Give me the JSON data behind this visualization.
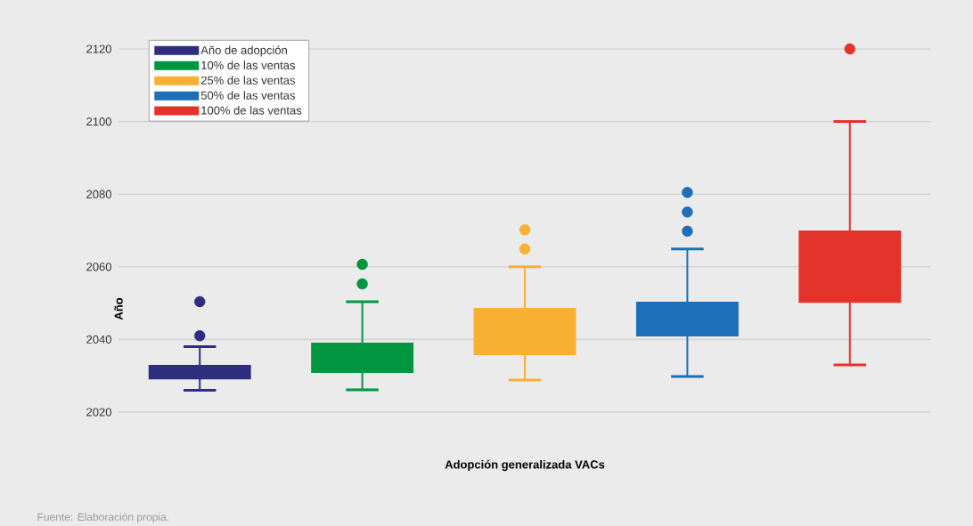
{
  "chart_data": {
    "type": "box",
    "xlabel": "Adopción generalizada VACs",
    "ylabel": "Año",
    "annotations": [
      "Fuente: Elaboración propia."
    ],
    "categories": [
      null,
      null,
      null,
      null,
      null
    ],
    "ylim": [
      2020,
      2120
    ],
    "yticks": [
      2020,
      2040,
      2060,
      2080,
      2100,
      2120
    ],
    "grid": "y",
    "legend": "top left",
    "series": [
      {
        "name": "Año de adopción",
        "color": "#2e2d7f",
        "boxes": [
          {
            "low": 2026,
            "q1": 2029,
            "q3": 2033,
            "high": 2038,
            "outliers": [
              2041,
              2050.4
            ]
          },
          null,
          null,
          null,
          null
        ]
      },
      {
        "name": "10% de las ventas",
        "color": "#009640",
        "boxes": [
          null,
          {
            "low": 2026.1,
            "q1": 2030.8,
            "q3": 2039.1,
            "high": 2050.4,
            "outliers": [
              2055.3,
              2060.7
            ]
          },
          null,
          null,
          null
        ]
      },
      {
        "name": "25% de las ventas",
        "color": "#f8b133",
        "boxes": [
          null,
          null,
          {
            "low": 2028.8,
            "q1": 2035.7,
            "q3": 2048.7,
            "high": 2060,
            "outliers": [
              2064.9,
              2070.2
            ]
          },
          null,
          null
        ]
      },
      {
        "name": "50% de las ventas",
        "color": "#1d70b7",
        "boxes": [
          null,
          null,
          null,
          {
            "low": 2029.8,
            "q1": 2040.8,
            "q3": 2050.4,
            "high": 2064.9,
            "outliers": [
              2069.8,
              2075.1,
              2080.5
            ]
          },
          null
        ]
      },
      {
        "name": "100% de las ventas",
        "color": "#e4332a",
        "boxes": [
          null,
          null,
          null,
          null,
          {
            "low": 2033,
            "q1": 2050.1,
            "q3": 2070,
            "high": 2100,
            "outliers": [
              2120
            ]
          }
        ]
      }
    ]
  }
}
